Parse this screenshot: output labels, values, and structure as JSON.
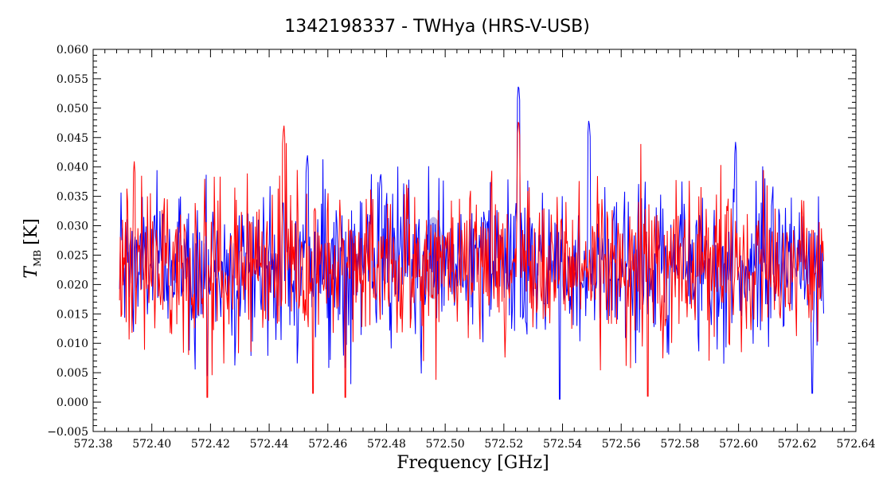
{
  "chart_data": {
    "type": "line",
    "title": "1342198337 - TWHya (HRS-V-USB)",
    "xlabel": "Frequency [GHz]",
    "ylabel": {
      "main": "T",
      "subscript": "MB",
      "unit": "[K]"
    },
    "xlim": [
      572.38,
      572.64
    ],
    "ylim": [
      -0.005,
      0.06
    ],
    "x_ticks": [
      "572.38",
      "572.40",
      "572.42",
      "572.44",
      "572.46",
      "572.48",
      "572.50",
      "572.52",
      "572.54",
      "572.56",
      "572.58",
      "572.60",
      "572.62",
      "572.64"
    ],
    "y_ticks": [
      "−0.005",
      "0.000",
      "0.005",
      "0.010",
      "0.015",
      "0.020",
      "0.025",
      "0.030",
      "0.035",
      "0.040",
      "0.045",
      "0.050",
      "0.055",
      "0.060"
    ],
    "grid": false,
    "series": [
      {
        "color": "#0000ff",
        "x_start": 572.389,
        "x_end": 572.629,
        "baseline": 0.0235,
        "noise_sigma": 0.0065,
        "features": [
          {
            "x": 572.525,
            "peak": 0.0545
          },
          {
            "x": 572.599,
            "peak": 0.0445
          },
          {
            "x": 572.549,
            "peak": 0.0485
          },
          {
            "x": 572.453,
            "peak": 0.0425
          },
          {
            "x": 572.478,
            "peak": 0.0395
          },
          {
            "x": 572.419,
            "min": 0.0045
          },
          {
            "x": 572.539,
            "min": 0.0005
          },
          {
            "x": 572.625,
            "min": 0.0015
          }
        ]
      },
      {
        "color": "#ff0000",
        "x_start": 572.389,
        "x_end": 572.629,
        "baseline": 0.0235,
        "noise_sigma": 0.0065,
        "features": [
          {
            "x": 572.525,
            "peak": 0.0485
          },
          {
            "x": 572.445,
            "peak": 0.0475
          },
          {
            "x": 572.394,
            "peak": 0.041
          },
          {
            "x": 572.569,
            "min": 0.001
          },
          {
            "x": 572.419,
            "min": 0.0008
          },
          {
            "x": 572.455,
            "min": 0.0015
          },
          {
            "x": 572.466,
            "min": 0.0008
          }
        ]
      }
    ],
    "annotations": [
      {
        "type": "ellipse",
        "cx": 572.496,
        "cy": 0.0245,
        "rx": 0.0035,
        "ry": 0.007,
        "color": "#6a6ad0"
      }
    ]
  }
}
